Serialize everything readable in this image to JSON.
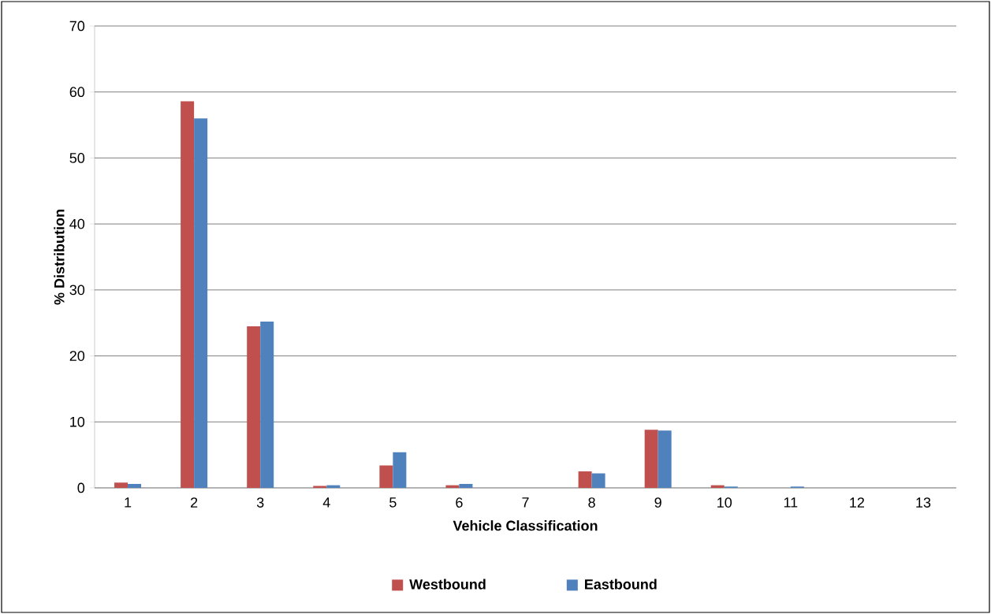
{
  "chart_data": {
    "type": "bar",
    "xlabel": "Vehicle Classification",
    "ylabel": "% Distribution",
    "categories": [
      "1",
      "2",
      "3",
      "4",
      "5",
      "6",
      "7",
      "8",
      "9",
      "10",
      "11",
      "12",
      "13"
    ],
    "series": [
      {
        "name": "Westbound",
        "color": "#c0504d",
        "values": [
          0.8,
          58.6,
          24.5,
          0.3,
          3.4,
          0.4,
          0,
          2.5,
          8.8,
          0.4,
          0,
          0,
          0
        ]
      },
      {
        "name": "Eastbound",
        "color": "#4f81bd",
        "values": [
          0.6,
          56.0,
          25.2,
          0.4,
          5.4,
          0.6,
          0,
          2.2,
          8.7,
          0.2,
          0.2,
          0,
          0
        ]
      }
    ],
    "ylim": [
      0,
      70
    ],
    "yticks": [
      0,
      10,
      20,
      30,
      40,
      50,
      60,
      70
    ],
    "grid": "y",
    "legend": "bottom"
  }
}
